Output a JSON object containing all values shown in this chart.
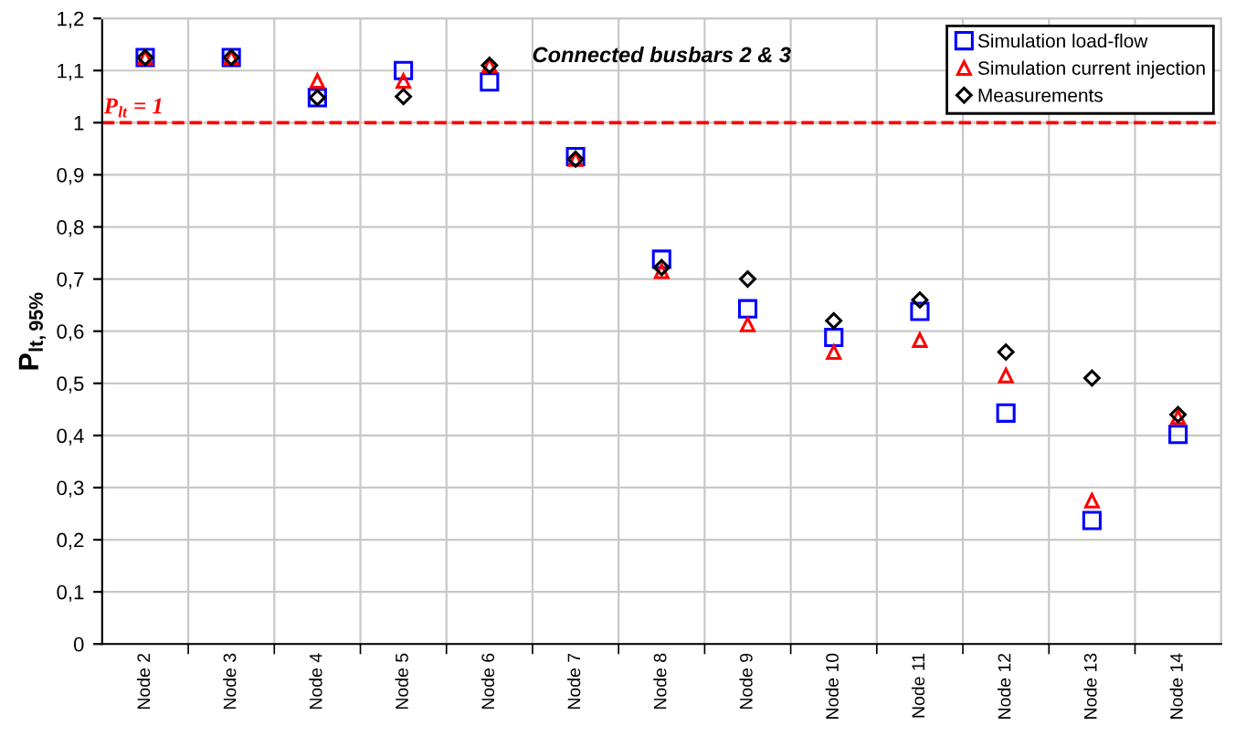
{
  "chart_data": {
    "type": "scatter",
    "title": "Connected busbars 2 & 3",
    "ylabel": "P$_{lt,95%}$",
    "categories": [
      "Node 2",
      "Node 3",
      "Node 4",
      "Node 5",
      "Node 6",
      "Node 7",
      "Node 8",
      "Node 9",
      "Node 10",
      "Node 11",
      "Node 12",
      "Node 13",
      "Node 14"
    ],
    "series": [
      {
        "name": "Simulation load-flow",
        "color": "#0000ff",
        "marker": "square",
        "values": [
          1.125,
          1.125,
          1.048,
          1.1,
          1.078,
          0.935,
          0.738,
          0.643,
          0.588,
          0.638,
          0.443,
          0.237,
          0.402
        ]
      },
      {
        "name": "Simulation current injection",
        "color": "#ff0000",
        "marker": "triangle",
        "values": [
          1.125,
          1.125,
          1.08,
          1.08,
          1.11,
          0.93,
          0.715,
          0.613,
          0.56,
          0.583,
          0.515,
          0.275,
          0.435
        ]
      },
      {
        "name": "Measurements",
        "color": "#000000",
        "marker": "diamond",
        "values": [
          1.125,
          1.125,
          1.048,
          1.05,
          1.11,
          0.93,
          0.722,
          0.7,
          0.62,
          0.66,
          0.56,
          0.51,
          0.44
        ]
      }
    ],
    "ylim": [
      0,
      1.2
    ],
    "yticks": [
      {
        "value": 0,
        "label": "0"
      },
      {
        "value": 0.1,
        "label": "0,1"
      },
      {
        "value": 0.2,
        "label": "0,2"
      },
      {
        "value": 0.3,
        "label": "0,3"
      },
      {
        "value": 0.4,
        "label": "0,4"
      },
      {
        "value": 0.5,
        "label": "0,5"
      },
      {
        "value": 0.6,
        "label": "0,6"
      },
      {
        "value": 0.7,
        "label": "0,7"
      },
      {
        "value": 0.8,
        "label": "0,8"
      },
      {
        "value": 0.9,
        "label": "0,9"
      },
      {
        "value": 1,
        "label": "1"
      },
      {
        "value": 1.1,
        "label": "1,1"
      },
      {
        "value": 1.2,
        "label": "1,2"
      }
    ],
    "ref_lines": [
      {
        "axis": "y",
        "value": 1,
        "label": "P$_{lt}$ = 1",
        "color": "#ff0000",
        "line_style": "dashed"
      }
    ],
    "grid": true,
    "legend": "top right"
  }
}
